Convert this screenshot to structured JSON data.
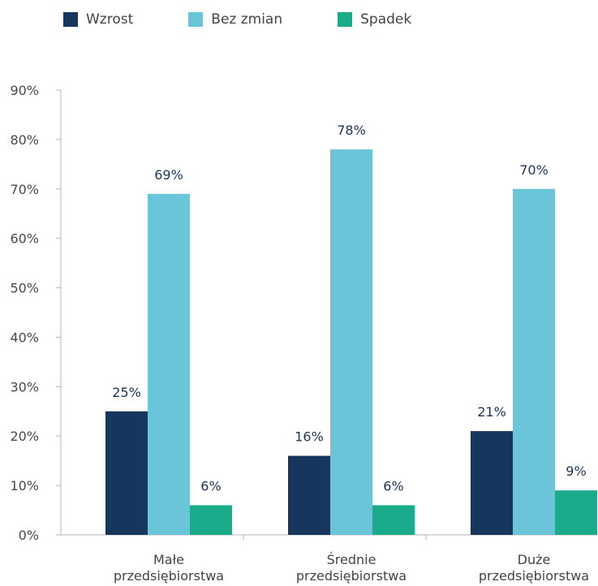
{
  "chart_data": {
    "type": "bar",
    "categories": [
      [
        "Małe",
        "przedsiębiorstwa"
      ],
      [
        "Średnie",
        "przedsiębiorstwa"
      ],
      [
        "Duże",
        "przedsiębiorstwa"
      ]
    ],
    "series": [
      {
        "name": "Wzrost",
        "color": "#17365d",
        "values": [
          25,
          16,
          21
        ],
        "labels": [
          "25%",
          "16%",
          "21%"
        ]
      },
      {
        "name": "Bez zmian",
        "color": "#6bc5d8",
        "values": [
          69,
          78,
          70
        ],
        "labels": [
          "69%",
          "78%",
          "70%"
        ]
      },
      {
        "name": "Spadek",
        "color": "#1aab8a",
        "values": [
          6,
          6,
          9
        ],
        "labels": [
          "6%",
          "6%",
          "9%"
        ]
      }
    ],
    "yticks": [
      "0%",
      "10%",
      "20%",
      "30%",
      "40%",
      "50%",
      "60%",
      "70%",
      "80%",
      "90%"
    ],
    "ylim": [
      0,
      90
    ],
    "legend": "top-left",
    "grid": false
  }
}
